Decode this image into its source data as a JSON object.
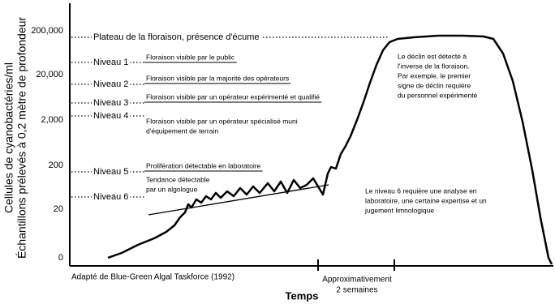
{
  "axis": {
    "y_title": [
      "Cellules de cyanobactéries/ml",
      "Échantillons prélevés à 0,2 mètre de profondeur"
    ],
    "y_labels": [
      "200,000",
      "20,000",
      "2,000",
      "200",
      "20",
      "0"
    ],
    "x_title": "Temps"
  },
  "levels": [
    {
      "label": "Plateau de la floraison, présence d'écume",
      "note": []
    },
    {
      "label": "Niveau 1",
      "note": [
        "Floraison visible par le public"
      ]
    },
    {
      "label": "Niveau 2",
      "note": [
        "Floraison visible par la majorité des opérateurs"
      ]
    },
    {
      "label": "Niveau 3",
      "note": [
        "Floraison visible par un opérateur expérimenté et qualifié"
      ]
    },
    {
      "label": "Niveau 4",
      "note": [
        "Floraison visible par un opérateur spécialisé muni",
        "d'équipement de terrain"
      ]
    },
    {
      "label": "Niveau 5",
      "note": [
        "Prolifération détectable en laboratoire"
      ]
    },
    {
      "label": "Niveau 6",
      "note": [
        "Tendance détectable",
        "par un algologue"
      ]
    }
  ],
  "decline_note": [
    "Le déclin est détecté à",
    "l'inverse de la floraison.",
    "Par exemple, le premier",
    "signe de déclin requière",
    "du personnel expérimenté"
  ],
  "level6_note": [
    "Le niveau 6 requière une analyse en",
    "laboratoire, une certaine expertise et un",
    "jugement limnologique"
  ],
  "source": "Adapté de Blue-Green Algal Taskforce (1992)",
  "duration": [
    "Approximativement",
    "2 semaines"
  ]
}
